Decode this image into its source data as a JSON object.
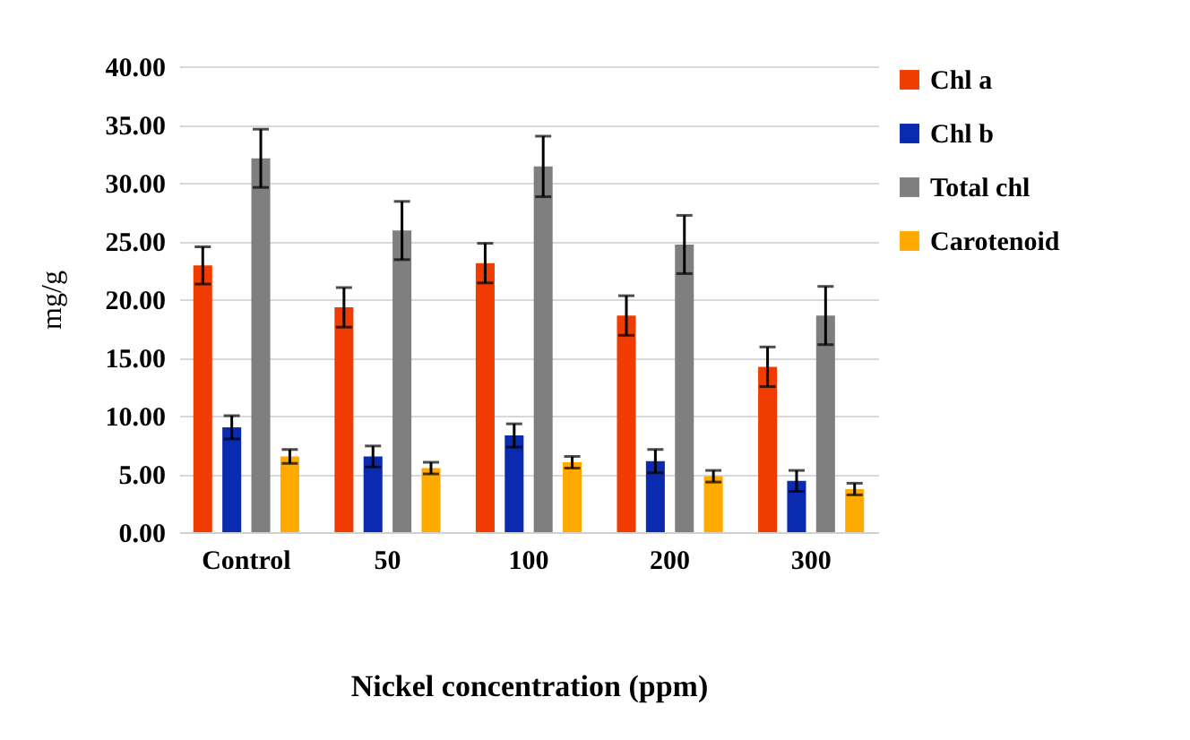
{
  "chart_data": {
    "type": "bar",
    "xlabel": "Nickel concentration (ppm)",
    "ylabel": "mg/g",
    "categories": [
      "Control",
      "50",
      "100",
      "200",
      "300"
    ],
    "series": [
      {
        "name": "Chl a",
        "color": "#f03c00",
        "values": [
          22.9,
          19.3,
          23.1,
          18.6,
          14.2
        ],
        "errors": [
          1.6,
          1.7,
          1.7,
          1.7,
          1.7
        ]
      },
      {
        "name": "Chl b",
        "color": "#0a2ab0",
        "values": [
          9.0,
          6.5,
          8.3,
          6.1,
          4.4
        ],
        "errors": [
          1.0,
          0.9,
          1.0,
          1.0,
          0.9
        ]
      },
      {
        "name": "Total chl",
        "color": "#7f7f7f",
        "values": [
          32.1,
          25.9,
          31.4,
          24.7,
          18.6
        ],
        "errors": [
          2.5,
          2.5,
          2.6,
          2.5,
          2.5
        ]
      },
      {
        "name": "Carotenoid",
        "color": "#ffaa00",
        "values": [
          6.5,
          5.5,
          6.0,
          4.8,
          3.7
        ],
        "errors": [
          0.6,
          0.5,
          0.5,
          0.5,
          0.5
        ]
      }
    ],
    "ylim": [
      0,
      40
    ],
    "yticks": [
      {
        "value": 0,
        "label": "0.00"
      },
      {
        "value": 5,
        "label": "5.00"
      },
      {
        "value": 10,
        "label": "10.00"
      },
      {
        "value": 15,
        "label": "15.00"
      },
      {
        "value": 20,
        "label": "20.00"
      },
      {
        "value": 25,
        "label": "25.00"
      },
      {
        "value": 30,
        "label": "30.00"
      },
      {
        "value": 35,
        "label": "35.00"
      },
      {
        "value": 40,
        "label": "40.00"
      }
    ],
    "grid": "y",
    "legend": "right"
  }
}
